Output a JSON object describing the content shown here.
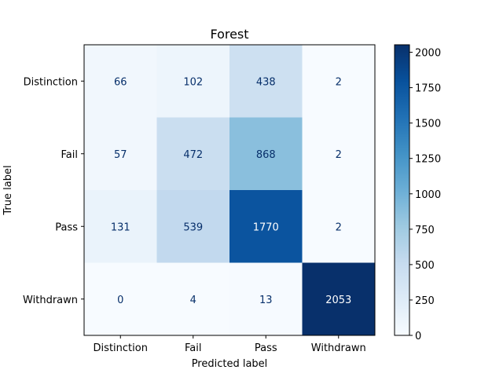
{
  "chart_data": {
    "type": "heatmap",
    "title": "Forest",
    "xlabel": "Predicted label",
    "ylabel": "True label",
    "x_categories": [
      "Distinction",
      "Fail",
      "Pass",
      "Withdrawn"
    ],
    "y_categories": [
      "Distinction",
      "Fail",
      "Pass",
      "Withdrawn"
    ],
    "values": [
      [
        66,
        102,
        438,
        2
      ],
      [
        57,
        472,
        868,
        2
      ],
      [
        131,
        539,
        1770,
        2
      ],
      [
        0,
        4,
        13,
        2053
      ]
    ],
    "colormap": "Blues",
    "colorbar": {
      "range": [
        0,
        2053
      ],
      "ticks": [
        0,
        250,
        500,
        750,
        1000,
        1250,
        1500,
        1750,
        2000
      ],
      "tick_labels": [
        "0",
        "250",
        "500",
        "750",
        "1000",
        "1250",
        "1500",
        "1750",
        "2000"
      ]
    },
    "grid": false
  }
}
